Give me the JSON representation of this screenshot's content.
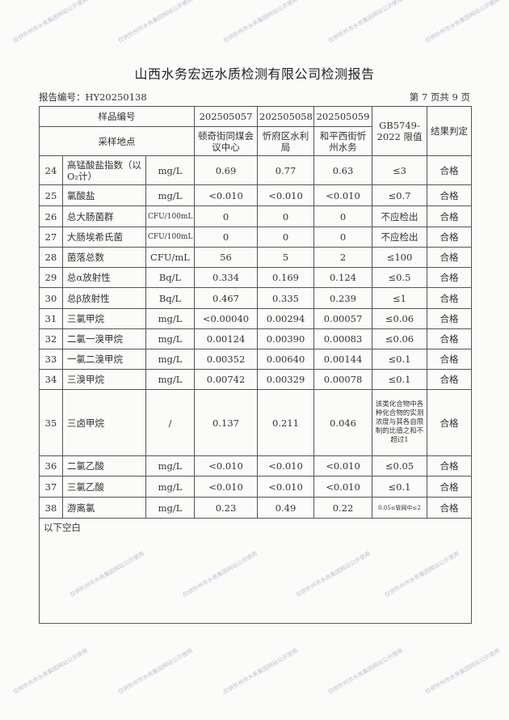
{
  "title": "山西水务宏远水质检测有限公司检测报告",
  "report_no": "报告编号：HY20250138",
  "page_info": "第 7 页共 9 页",
  "header": {
    "sample_no_label": "样品编号",
    "site_label": "采样地点",
    "samples": [
      "202505057",
      "202505058",
      "202505059"
    ],
    "sites": [
      "顿奇街同煤会议中心",
      "忻府区水利局",
      "和平西街忻州水务"
    ],
    "limit_label": "GB5749-2022 限值",
    "result_label": "结果判定"
  },
  "rows": [
    {
      "no": "24",
      "item": "高锰酸盐指数（以O₂计）",
      "unit": "mg/L",
      "v1": "0.69",
      "v2": "0.77",
      "v3": "0.63",
      "limit": "≤3",
      "result": "合格"
    },
    {
      "no": "25",
      "item": "氯酸盐",
      "unit": "mg/L",
      "v1": "<0.010",
      "v2": "<0.010",
      "v3": "<0.010",
      "limit": "≤0.7",
      "result": "合格"
    },
    {
      "no": "26",
      "item": "总大肠菌群",
      "unit": "CFU/100mL",
      "v1": "0",
      "v2": "0",
      "v3": "0",
      "limit": "不应检出",
      "result": "合格"
    },
    {
      "no": "27",
      "item": "大肠埃希氏菌",
      "unit": "CFU/100mL",
      "v1": "0",
      "v2": "0",
      "v3": "0",
      "limit": "不应检出",
      "result": "合格"
    },
    {
      "no": "28",
      "item": "菌落总数",
      "unit": "CFU/mL",
      "v1": "56",
      "v2": "5",
      "v3": "2",
      "limit": "≤100",
      "result": "合格"
    },
    {
      "no": "29",
      "item": "总α放射性",
      "unit": "Bq/L",
      "v1": "0.334",
      "v2": "0.169",
      "v3": "0.124",
      "limit": "≤0.5",
      "result": "合格"
    },
    {
      "no": "30",
      "item": "总β放射性",
      "unit": "Bq/L",
      "v1": "0.467",
      "v2": "0.335",
      "v3": "0.239",
      "limit": "≤1",
      "result": "合格"
    },
    {
      "no": "31",
      "item": "三氯甲烷",
      "unit": "mg/L",
      "v1": "<0.00040",
      "v2": "0.00294",
      "v3": "0.00057",
      "limit": "≤0.06",
      "result": "合格"
    },
    {
      "no": "32",
      "item": "二氯一溴甲烷",
      "unit": "mg/L",
      "v1": "0.00124",
      "v2": "0.00390",
      "v3": "0.00083",
      "limit": "≤0.06",
      "result": "合格"
    },
    {
      "no": "33",
      "item": "一氯二溴甲烷",
      "unit": "mg/L",
      "v1": "0.00352",
      "v2": "0.00640",
      "v3": "0.00144",
      "limit": "≤0.1",
      "result": "合格"
    },
    {
      "no": "34",
      "item": "三溴甲烷",
      "unit": "mg/L",
      "v1": "0.00742",
      "v2": "0.00329",
      "v3": "0.00078",
      "limit": "≤0.1",
      "result": "合格"
    },
    {
      "no": "35",
      "item": "三卤甲烷",
      "unit": "/",
      "v1": "0.137",
      "v2": "0.211",
      "v3": "0.046",
      "limit": "该类化合物中各种化合物的实测浓度与其各自限制的比值之和不超过1",
      "result": "合格"
    },
    {
      "no": "36",
      "item": "二氯乙酸",
      "unit": "mg/L",
      "v1": "<0.010",
      "v2": "<0.010",
      "v3": "<0.010",
      "limit": "≤0.05",
      "result": "合格"
    },
    {
      "no": "37",
      "item": "三氯乙酸",
      "unit": "mg/L",
      "v1": "<0.010",
      "v2": "<0.010",
      "v3": "<0.010",
      "limit": "≤0.1",
      "result": "合格"
    },
    {
      "no": "38",
      "item": "游离氯",
      "unit": "mg/L",
      "v1": "0.23",
      "v2": "0.49",
      "v3": "0.22",
      "limit": "0.05≤管网中≤2",
      "result": "合格"
    }
  ],
  "footer_note": "以下空白",
  "watermark": "仅供忻州市水务集团网站公示使用"
}
